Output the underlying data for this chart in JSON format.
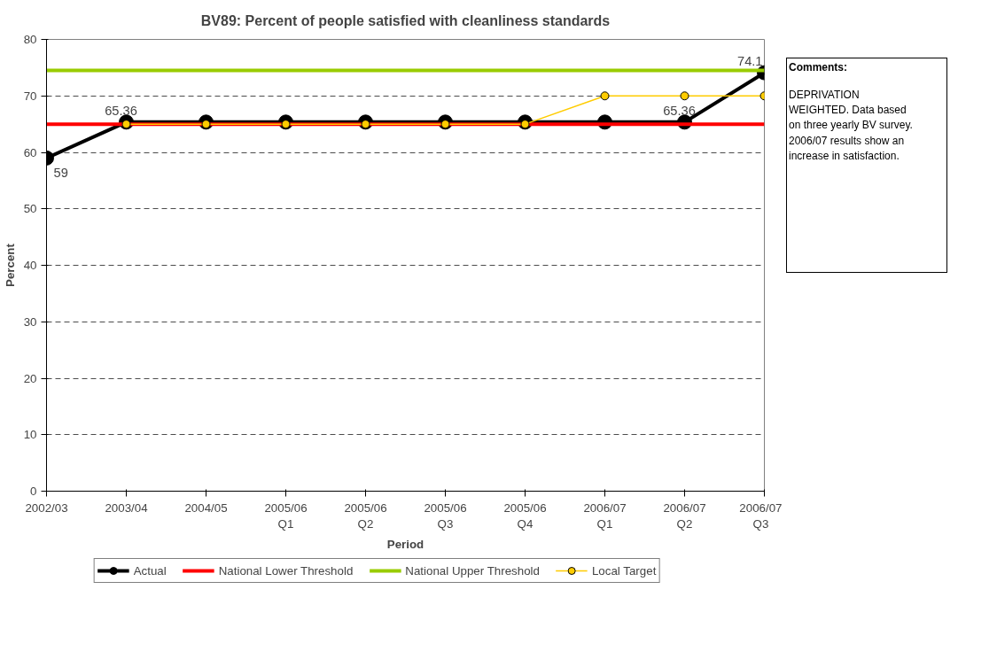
{
  "chart_data": {
    "type": "line",
    "title": "BV89: Percent of people satisfied with cleanliness standards",
    "xlabel": "Period",
    "ylabel": "Percent",
    "categories": [
      "2002/03",
      "2003/04",
      "2004/05",
      "2005/06\nQ1",
      "2005/06\nQ2",
      "2005/06\nQ3",
      "2005/06\nQ4",
      "2006/07\nQ1",
      "2006/07\nQ2",
      "2006/07\nQ3"
    ],
    "series": [
      {
        "name": "Actual",
        "color": "#000000",
        "marker": "circle",
        "values": [
          59,
          65.36,
          65.36,
          65.36,
          65.36,
          65.36,
          65.36,
          65.36,
          65.36,
          74.1
        ],
        "value_labels": [
          "59",
          "65.36",
          null,
          null,
          null,
          null,
          null,
          null,
          "65.36",
          "74.1"
        ]
      },
      {
        "name": "National Lower Threshold",
        "color": "#ff0000",
        "marker": "none",
        "values": [
          65,
          65,
          65,
          65,
          65,
          65,
          65,
          65,
          65,
          65
        ]
      },
      {
        "name": "National Upper Threshold",
        "color": "#99cc00",
        "marker": "none",
        "values": [
          74.5,
          74.5,
          74.5,
          74.5,
          74.5,
          74.5,
          74.5,
          74.5,
          74.5,
          74.5
        ]
      },
      {
        "name": "Local Target",
        "color": "#ffcc00",
        "marker": "circle",
        "values": [
          null,
          65,
          65,
          65,
          65,
          65,
          65,
          70,
          70,
          70
        ]
      }
    ],
    "ylim": [
      0,
      80
    ],
    "yticks": [
      0,
      10,
      20,
      30,
      40,
      50,
      60,
      70,
      80
    ],
    "grid": "y",
    "legend": "bottom",
    "line_style": "solid",
    "annotations": [
      "Comments:",
      "DEPRIVATION\nWEIGHTED. Data based\non three yearly BV survey.\n2006/07 results show an\nincrease in satisfaction."
    ]
  }
}
